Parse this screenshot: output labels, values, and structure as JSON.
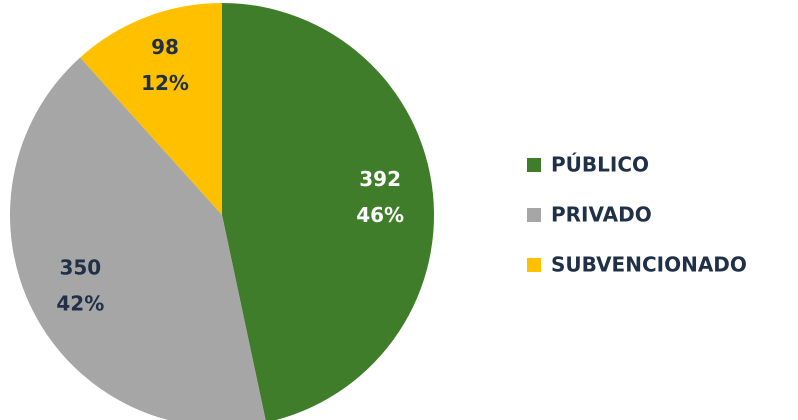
{
  "chart_data": {
    "type": "pie",
    "categories": [
      "PÚBLICO",
      "PRIVADO",
      "SUBVENCIONADO"
    ],
    "values": [
      392,
      350,
      98
    ],
    "percent_labels": [
      "46%",
      "42%",
      "12%"
    ],
    "colors": [
      "#3f7d2a",
      "#a6a6a6",
      "#ffc000"
    ],
    "label_colors": [
      "#ffffff",
      "#1f3047",
      "#1f3047"
    ],
    "legend": "right"
  }
}
